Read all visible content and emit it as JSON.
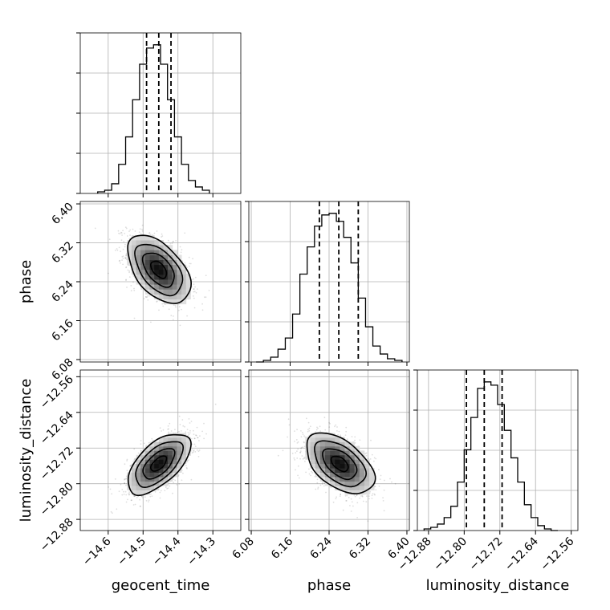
{
  "chart_data": {
    "type": "corner",
    "title": "",
    "parameters": [
      "geocent_time",
      "phase",
      "luminosity_distance"
    ],
    "grid": true,
    "ranges": {
      "geocent_time": [
        -14.68,
        -14.22
      ],
      "phase": [
        6.075,
        6.405
      ],
      "luminosity_distance": [
        -12.905,
        -12.545
      ]
    },
    "ticks": {
      "geocent_time": [
        -14.6,
        -14.5,
        -14.4,
        -14.3
      ],
      "phase": [
        6.08,
        6.16,
        6.24,
        6.32,
        6.4
      ],
      "luminosity_distance": [
        -12.88,
        -12.8,
        -12.72,
        -12.64,
        -12.56
      ]
    },
    "tick_labels": {
      "geocent_time": [
        "−14.6",
        "−14.5",
        "−14.4",
        "−14.3"
      ],
      "phase": [
        "6.08",
        "6.16",
        "6.24",
        "6.32",
        "6.40"
      ],
      "luminosity_distance": [
        "−12.88",
        "−12.80",
        "−12.72",
        "−12.64",
        "−12.56"
      ]
    },
    "quantiles": {
      "geocent_time": [
        -14.49,
        -14.455,
        -14.42
      ],
      "phase": [
        6.22,
        6.26,
        6.3
      ],
      "luminosity_distance": [
        -12.795,
        -12.755,
        -12.715
      ]
    },
    "histograms": {
      "geocent_time": {
        "edges": [
          -14.63,
          -14.61,
          -14.59,
          -14.57,
          -14.55,
          -14.53,
          -14.51,
          -14.49,
          -14.47,
          -14.45,
          -14.43,
          -14.41,
          -14.39,
          -14.37,
          -14.35,
          -14.33,
          -14.31
        ],
        "counts": [
          1,
          2,
          6,
          18,
          35,
          58,
          80,
          90,
          92,
          80,
          58,
          35,
          18,
          8,
          4,
          2
        ]
      },
      "phase": {
        "edges": [
          6.09,
          6.105,
          6.12,
          6.135,
          6.15,
          6.165,
          6.18,
          6.195,
          6.21,
          6.225,
          6.24,
          6.255,
          6.27,
          6.285,
          6.3,
          6.315,
          6.33,
          6.345,
          6.36,
          6.375,
          6.39
        ],
        "counts": [
          0,
          1,
          3,
          8,
          15,
          30,
          55,
          72,
          85,
          92,
          93,
          88,
          78,
          62,
          40,
          22,
          10,
          5,
          2,
          1
        ]
      },
      "luminosity_distance": {
        "edges": [
          -12.89,
          -12.875,
          -12.86,
          -12.845,
          -12.83,
          -12.815,
          -12.8,
          -12.785,
          -12.77,
          -12.755,
          -12.74,
          -12.725,
          -12.71,
          -12.695,
          -12.68,
          -12.665,
          -12.65,
          -12.635,
          -12.62,
          -12.605,
          -12.59
        ],
        "counts": [
          1,
          2,
          4,
          8,
          15,
          30,
          50,
          70,
          88,
          92,
          90,
          78,
          62,
          45,
          30,
          16,
          8,
          3,
          1,
          0
        ]
      }
    },
    "pairs": [
      {
        "x": "geocent_time",
        "y": "phase",
        "mean": [
          -14.455,
          6.265
        ],
        "std": [
          0.045,
          0.035
        ],
        "corr": -0.5,
        "contour_levels": [
          0.5,
          1.0,
          1.5,
          2.0
        ]
      },
      {
        "x": "geocent_time",
        "y": "luminosity_distance",
        "mean": [
          -14.455,
          -12.755
        ],
        "std": [
          0.045,
          0.034
        ],
        "corr": 0.6,
        "contour_levels": [
          0.5,
          1.0,
          1.5,
          2.0
        ]
      },
      {
        "x": "phase",
        "y": "luminosity_distance",
        "mean": [
          6.262,
          -12.755
        ],
        "std": [
          0.035,
          0.034
        ],
        "corr": -0.5,
        "contour_levels": [
          0.5,
          1.0,
          1.5,
          2.0
        ]
      }
    ]
  }
}
